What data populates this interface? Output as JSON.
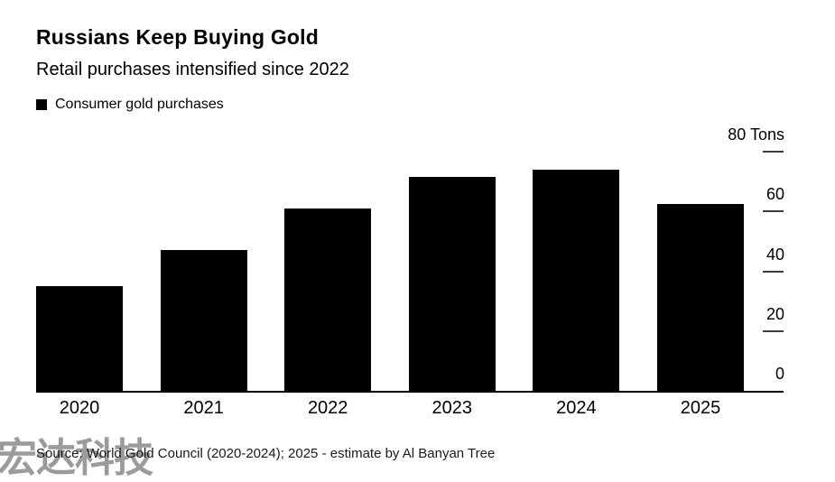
{
  "header": {
    "title": "Russians Keep Buying Gold",
    "subtitle": "Retail purchases intensified since 2022"
  },
  "legend": {
    "marker_color": "#000000",
    "label": "Consumer gold purchases"
  },
  "chart_data": {
    "type": "bar",
    "categories": [
      "2020",
      "2021",
      "2022",
      "2023",
      "2024",
      "2025"
    ],
    "values": [
      35,
      47,
      61,
      71.5,
      74,
      62.5
    ],
    "series_name": "Consumer gold purchases",
    "title": "Russians Keep Buying Gold",
    "subtitle": "Retail purchases intensified since 2022",
    "unit": "Tons",
    "top_axis_label": "80 Tons",
    "y_ticks": [
      0,
      20,
      40,
      60,
      80
    ],
    "ylim": [
      0,
      80
    ],
    "bar_color": "#000000",
    "axis_side": "right",
    "grid": false,
    "legend_position": "top-left"
  },
  "footer": {
    "source": "Source: World Gold Council (2020-2024); 2025 - estimate by Al Banyan Tree"
  },
  "watermark": {
    "text": "宏达科技",
    "color": "#9b9b9b"
  }
}
